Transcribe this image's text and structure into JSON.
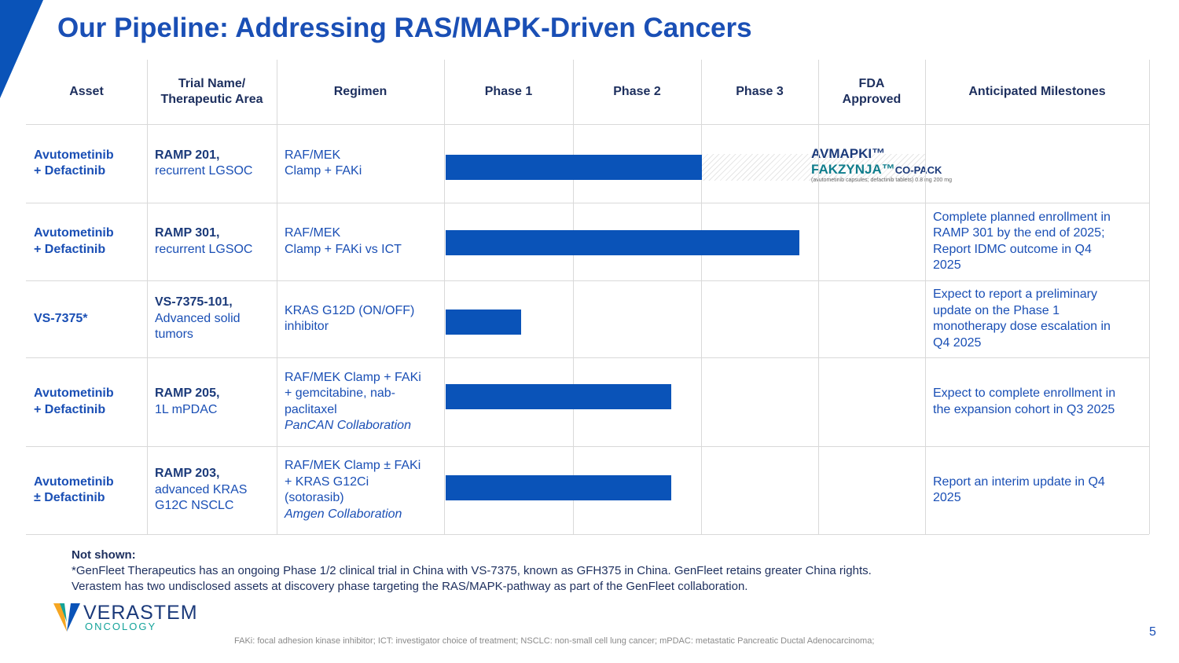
{
  "title": "Our Pipeline: Addressing RAS/MAPK-Driven Cancers",
  "table": {
    "headers": [
      "Asset",
      "Trial Name/\nTherapeutic Area",
      "Regimen",
      "Phase 1",
      "Phase 2",
      "Phase 3",
      "FDA\nApproved",
      "Anticipated Milestones"
    ],
    "rows": [
      {
        "asset": "Avutometinib\n+ Defactinib",
        "trial": "RAMP 201,",
        "area": "recurrent LGSOC",
        "regimen": "RAF/MEK\nClamp + FAKi"
      },
      {
        "asset": "Avutometinib\n+ Defactinib",
        "trial": "RAMP 301,",
        "area": "recurrent LGSOC",
        "regimen": "RAF/MEK\nClamp + FAKi vs ICT",
        "milestone": "Complete planned enrollment in\nRAMP 301 by the end of 2025;\nReport IDMC outcome in Q4\n2025"
      },
      {
        "asset": "VS-7375*",
        "trial": "VS-7375-101,",
        "area": "Advanced solid\ntumors",
        "regimen": "KRAS G12D (ON/OFF)\ninhibitor",
        "milestone": "Expect to report a preliminary\nupdate on the Phase 1\nmonotherapy dose escalation in\nQ4 2025"
      },
      {
        "asset": "Avutometinib\n+ Defactinib",
        "trial": "RAMP 205,",
        "area": "1L mPDAC",
        "regimen": "RAF/MEK Clamp + FAKi\n+ gemcitabine, nab-\npaclitaxel",
        "collaboration": "PanCAN Collaboration",
        "milestone": "Expect to complete enrollment in\nthe expansion cohort in Q3 2025"
      },
      {
        "asset": "Avutometinib\n± Defactinib",
        "trial": "RAMP 203,",
        "area": "advanced KRAS\nG12C NSCLC",
        "regimen": "RAF/MEK Clamp ± FAKi\n+ KRAS G12Ci\n(sotorasib)",
        "collaboration": "Amgen Collaboration",
        "milestone": "Report an interim update in Q4\n2025"
      }
    ]
  },
  "approved_logo": {
    "name1": "AVMAPKI™",
    "name2": "FAKZYNJA™",
    "suffix": "CO-PACK",
    "detail": "(avutometinib capsules; defactinib tablets) 0.8 mg 200 mg"
  },
  "footnote": {
    "heading": "Not shown:",
    "lines": [
      "*GenFleet Therapeutics has an ongoing Phase 1/2 clinical trial in China with VS-7375, known as GFH375 in China. GenFleet retains greater China rights.",
      "Verastem has two undisclosed assets at discovery phase targeting the RAS/MAPK-pathway as part of the GenFleet collaboration."
    ]
  },
  "abbreviations": "FAKi: focal adhesion kinase inhibitor; ICT: investigator choice of treatment; NSCLC: non-small cell lung cancer; mPDAC: metastatic Pancreatic Ductal Adenocarcinoma;",
  "logo": {
    "name": "VERASTEM",
    "sub": "ONCOLOGY"
  },
  "page_number": "5"
}
